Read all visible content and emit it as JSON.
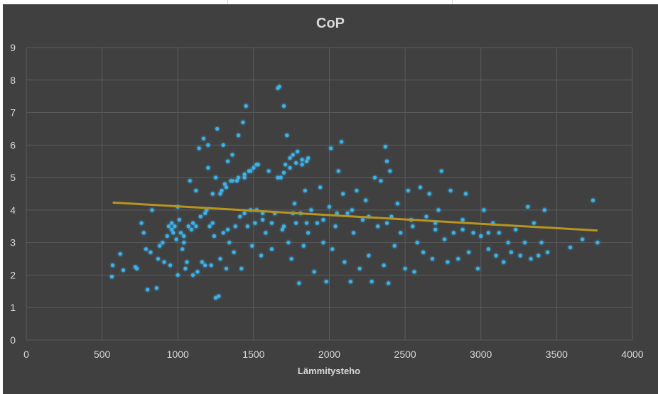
{
  "chart_data": {
    "type": "scatter",
    "title": "CoP",
    "xlabel": "Lämmitysteho",
    "ylabel": "",
    "xlim": [
      0,
      4000
    ],
    "ylim": [
      0,
      9
    ],
    "x_ticks": [
      "0",
      "500",
      "1000",
      "1500",
      "2000",
      "2500",
      "3000",
      "3500",
      "4000"
    ],
    "y_ticks": [
      "0",
      "1",
      "2",
      "3",
      "4",
      "5",
      "6",
      "7",
      "8",
      "9"
    ],
    "grid": true,
    "legend": "none",
    "colors": {
      "background": "#404040",
      "points": "#3bb2ea",
      "trendline": "#b8951f",
      "grid": "#5a5a5a",
      "text": "#d9d9d9"
    },
    "trendline": {
      "type": "linear",
      "x": [
        570,
        3770
      ],
      "y": [
        4.23,
        3.37
      ]
    },
    "points": [
      [
        570,
        2.3
      ],
      [
        565,
        1.95
      ],
      [
        620,
        2.65
      ],
      [
        640,
        2.15
      ],
      [
        720,
        2.25
      ],
      [
        730,
        2.2
      ],
      [
        760,
        3.6
      ],
      [
        775,
        3.3
      ],
      [
        790,
        2.8
      ],
      [
        800,
        1.55
      ],
      [
        820,
        2.7
      ],
      [
        830,
        4.0
      ],
      [
        860,
        1.6
      ],
      [
        870,
        2.5
      ],
      [
        880,
        2.9
      ],
      [
        900,
        3.0
      ],
      [
        910,
        2.4
      ],
      [
        930,
        3.2
      ],
      [
        940,
        3.5
      ],
      [
        950,
        2.3
      ],
      [
        960,
        3.6
      ],
      [
        970,
        3.3
      ],
      [
        980,
        3.5
      ],
      [
        990,
        3.1
      ],
      [
        1000,
        4.1
      ],
      [
        1000,
        2.0
      ],
      [
        1010,
        3.7
      ],
      [
        1020,
        3.3
      ],
      [
        1030,
        2.8
      ],
      [
        1040,
        3.0
      ],
      [
        1050,
        2.2
      ],
      [
        1060,
        2.4
      ],
      [
        1070,
        3.5
      ],
      [
        1080,
        4.9
      ],
      [
        1090,
        3.4
      ],
      [
        1100,
        2.0
      ],
      [
        1100,
        3.6
      ],
      [
        1120,
        4.6
      ],
      [
        1130,
        2.1
      ],
      [
        1140,
        5.9
      ],
      [
        1150,
        3.8
      ],
      [
        1160,
        2.4
      ],
      [
        1170,
        6.2
      ],
      [
        1180,
        2.3
      ],
      [
        1190,
        4.0
      ],
      [
        1200,
        5.3
      ],
      [
        1200,
        6.0
      ],
      [
        1210,
        3.5
      ],
      [
        1220,
        2.3
      ],
      [
        1230,
        4.5
      ],
      [
        1240,
        3.2
      ],
      [
        1250,
        1.3
      ],
      [
        1250,
        5.0
      ],
      [
        1260,
        6.5
      ],
      [
        1270,
        1.35
      ],
      [
        1280,
        2.5
      ],
      [
        1290,
        4.6
      ],
      [
        1300,
        3.3
      ],
      [
        1300,
        6.0
      ],
      [
        1310,
        4.8
      ],
      [
        1320,
        2.2
      ],
      [
        1330,
        5.5
      ],
      [
        1340,
        3.0
      ],
      [
        1350,
        4.9
      ],
      [
        1360,
        5.7
      ],
      [
        1370,
        2.7
      ],
      [
        1380,
        3.5
      ],
      [
        1390,
        4.9
      ],
      [
        1400,
        6.3
      ],
      [
        1410,
        3.8
      ],
      [
        1420,
        2.2
      ],
      [
        1430,
        6.7
      ],
      [
        1440,
        5.0
      ],
      [
        1450,
        7.2
      ],
      [
        1460,
        3.5
      ],
      [
        1470,
        5.2
      ],
      [
        1480,
        4.0
      ],
      [
        1490,
        2.9
      ],
      [
        1500,
        5.3
      ],
      [
        1510,
        3.6
      ],
      [
        1520,
        4.0
      ],
      [
        1530,
        5.4
      ],
      [
        1550,
        2.6
      ],
      [
        1560,
        3.9
      ],
      [
        1580,
        3.3
      ],
      [
        1600,
        5.2
      ],
      [
        1620,
        2.8
      ],
      [
        1640,
        3.9
      ],
      [
        1660,
        7.75
      ],
      [
        1670,
        7.8
      ],
      [
        1680,
        5.0
      ],
      [
        1690,
        3.4
      ],
      [
        1700,
        7.2
      ],
      [
        1710,
        5.4
      ],
      [
        1720,
        6.3
      ],
      [
        1730,
        3.0
      ],
      [
        1740,
        5.6
      ],
      [
        1750,
        2.5
      ],
      [
        1760,
        5.7
      ],
      [
        1770,
        4.2
      ],
      [
        1780,
        3.6
      ],
      [
        1790,
        5.8
      ],
      [
        1800,
        1.75
      ],
      [
        1810,
        3.9
      ],
      [
        1820,
        5.4
      ],
      [
        1830,
        2.9
      ],
      [
        1840,
        4.6
      ],
      [
        1850,
        5.5
      ],
      [
        1860,
        3.3
      ],
      [
        1880,
        4.0
      ],
      [
        1900,
        2.1
      ],
      [
        1920,
        3.6
      ],
      [
        1940,
        4.7
      ],
      [
        1960,
        3.0
      ],
      [
        1980,
        1.8
      ],
      [
        2000,
        4.1
      ],
      [
        2010,
        5.9
      ],
      [
        2020,
        2.8
      ],
      [
        2040,
        3.5
      ],
      [
        2060,
        5.2
      ],
      [
        2080,
        6.1
      ],
      [
        2090,
        4.5
      ],
      [
        2100,
        2.4
      ],
      [
        2120,
        3.9
      ],
      [
        2140,
        1.8
      ],
      [
        2160,
        3.3
      ],
      [
        2180,
        4.6
      ],
      [
        2200,
        2.2
      ],
      [
        2220,
        3.7
      ],
      [
        2240,
        4.3
      ],
      [
        2260,
        2.6
      ],
      [
        2280,
        1.8
      ],
      [
        2300,
        5.0
      ],
      [
        2320,
        3.5
      ],
      [
        2340,
        4.9
      ],
      [
        2360,
        2.3
      ],
      [
        2370,
        5.95
      ],
      [
        2380,
        5.5
      ],
      [
        2390,
        1.75
      ],
      [
        2400,
        5.2
      ],
      [
        2410,
        3.8
      ],
      [
        2430,
        2.9
      ],
      [
        2450,
        4.2
      ],
      [
        2470,
        3.3
      ],
      [
        2500,
        2.2
      ],
      [
        2520,
        4.6
      ],
      [
        2540,
        3.7
      ],
      [
        2560,
        2.1
      ],
      [
        2580,
        3.0
      ],
      [
        2600,
        4.7
      ],
      [
        2620,
        2.7
      ],
      [
        2640,
        3.8
      ],
      [
        2660,
        4.5
      ],
      [
        2680,
        2.5
      ],
      [
        2700,
        3.4
      ],
      [
        2720,
        4.0
      ],
      [
        2740,
        5.2
      ],
      [
        2760,
        3.1
      ],
      [
        2780,
        2.4
      ],
      [
        2800,
        4.6
      ],
      [
        2820,
        3.3
      ],
      [
        2850,
        2.5
      ],
      [
        2880,
        3.7
      ],
      [
        2900,
        4.5
      ],
      [
        2920,
        2.7
      ],
      [
        2950,
        3.3
      ],
      [
        2980,
        2.2
      ],
      [
        3000,
        3.2
      ],
      [
        3020,
        4.0
      ],
      [
        3050,
        2.8
      ],
      [
        3080,
        3.6
      ],
      [
        3100,
        2.6
      ],
      [
        3120,
        3.3
      ],
      [
        3150,
        2.4
      ],
      [
        3180,
        3.0
      ],
      [
        3200,
        2.7
      ],
      [
        3230,
        3.4
      ],
      [
        3260,
        2.6
      ],
      [
        3290,
        3.0
      ],
      [
        3310,
        4.1
      ],
      [
        3330,
        2.5
      ],
      [
        3350,
        3.6
      ],
      [
        3380,
        2.6
      ],
      [
        3400,
        3.0
      ],
      [
        3420,
        4.0
      ],
      [
        3440,
        2.7
      ],
      [
        3590,
        2.85
      ],
      [
        3670,
        3.1
      ],
      [
        3740,
        4.3
      ],
      [
        3770,
        3.0
      ],
      [
        1280,
        4.5
      ],
      [
        1320,
        4.7
      ],
      [
        1360,
        4.9
      ],
      [
        1400,
        5.0
      ],
      [
        1440,
        5.1
      ],
      [
        1480,
        5.2
      ],
      [
        1520,
        5.4
      ],
      [
        1660,
        5.0
      ],
      [
        1700,
        5.15
      ],
      [
        1740,
        5.3
      ],
      [
        1780,
        5.45
      ],
      [
        1820,
        5.55
      ],
      [
        1860,
        5.6
      ],
      [
        960,
        3.4
      ],
      [
        1040,
        3.2
      ],
      [
        1120,
        3.5
      ],
      [
        1180,
        3.9
      ],
      [
        1230,
        3.6
      ],
      [
        1330,
        3.4
      ],
      [
        1440,
        3.9
      ],
      [
        1560,
        3.7
      ],
      [
        1620,
        3.6
      ],
      [
        1700,
        3.5
      ],
      [
        1760,
        3.9
      ],
      [
        1850,
        3.6
      ],
      [
        1960,
        3.7
      ],
      [
        2050,
        3.9
      ],
      [
        2150,
        4.0
      ],
      [
        2260,
        3.8
      ],
      [
        2380,
        3.6
      ],
      [
        2550,
        3.5
      ],
      [
        2700,
        3.6
      ],
      [
        2880,
        3.4
      ],
      [
        3050,
        3.3
      ]
    ]
  }
}
